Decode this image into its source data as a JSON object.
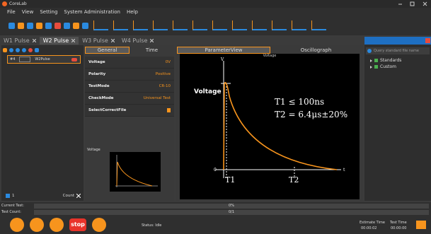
{
  "window": {
    "title": "CoreLab"
  },
  "menu": [
    "File",
    "View",
    "Setting",
    "System Administration",
    "Help"
  ],
  "tabs": [
    "W1 Pulse",
    "W2 Pulse",
    "W3 Pulse",
    "W4 Pulse"
  ],
  "left_panel": {
    "item_id": "#4",
    "item_name": "W2Pulse",
    "page": "1",
    "count_label": "Count"
  },
  "settings_tabs": [
    "General",
    "Time"
  ],
  "properties": [
    {
      "name": "Voltage",
      "value": "0V"
    },
    {
      "name": "Polarity",
      "value": "Positive"
    },
    {
      "name": "TestMode",
      "value": "CR-10"
    },
    {
      "name": "CheckMode",
      "value": "Universal Test"
    },
    {
      "name": "SelectCorrectFile"
    }
  ],
  "preview_title": "Voltage",
  "view_tabs": [
    "ParameterView",
    "Oscillograph"
  ],
  "waveform": {
    "title": "Voltage",
    "y_label": "Voltage",
    "y_axis": "V",
    "x_axis": "t",
    "origin": "0",
    "t1_formula": "T1 ≤ 100ns",
    "t2_formula": "T2 = 6.4μs±20%",
    "t1_marker": "T1",
    "t2_marker": "T2"
  },
  "search_placeholder": "Query standard file name",
  "tree": [
    "Standards",
    "Custom"
  ],
  "status": {
    "current_test_label": "Current Test:",
    "current_test_progress": "0%",
    "test_count_label": "Test Count:",
    "test_count_progress": "0/1",
    "status_label": "Status:",
    "status_value": "Idle",
    "estimate_time_label": "Estimate Time",
    "test_time_label": "Test Time",
    "estimate_time": "00:00:02",
    "test_time": "00:00:00"
  },
  "buttons": {
    "stop": "stop"
  }
}
